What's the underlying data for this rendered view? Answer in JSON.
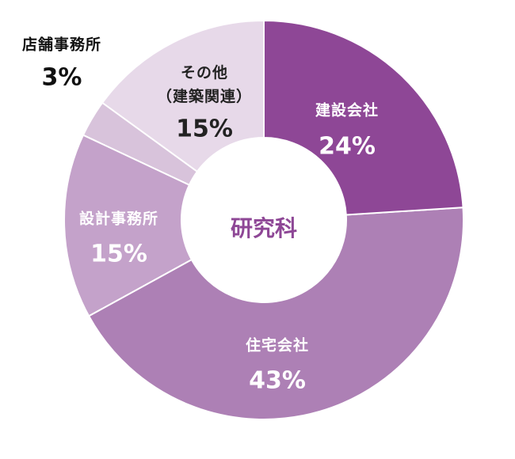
{
  "chart_data": {
    "type": "donut",
    "center_label": "研究科",
    "categories": [
      "建設会社",
      "住宅会社",
      "設計事務所",
      "店舗事務所",
      "その他（建築関連）"
    ],
    "values": [
      24,
      43,
      15,
      3,
      15
    ],
    "value_labels": [
      "24%",
      "43%",
      "15%",
      "3%",
      "15%"
    ],
    "colors": [
      "#8e4796",
      "#ad80b5",
      "#c4a2ca",
      "#d8c3db",
      "#e7d9e9"
    ]
  }
}
